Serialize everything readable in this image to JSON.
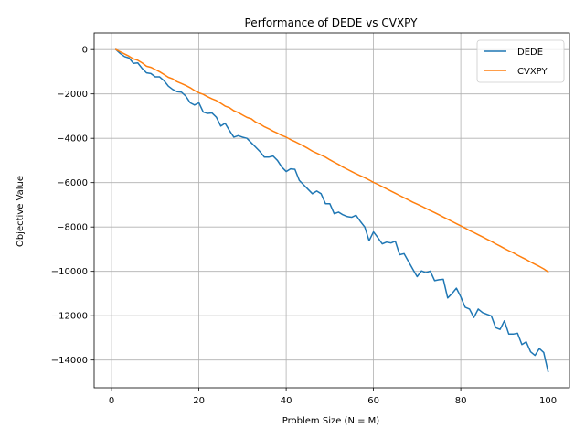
{
  "chart_data": {
    "type": "line",
    "title": "Performance of DEDE vs CVXPY",
    "xlabel": "Problem Size (N = M)",
    "ylabel": "Objective Value",
    "xlim": [
      -4,
      104.9
    ],
    "ylim": [
      -15250,
      750
    ],
    "xticks": [
      0,
      20,
      40,
      60,
      80,
      100
    ],
    "yticks": [
      0,
      -2000,
      -4000,
      -6000,
      -8000,
      -10000,
      -12000,
      -14000
    ],
    "xtick_labels": [
      "0",
      "20",
      "40",
      "60",
      "80",
      "100"
    ],
    "ytick_labels": [
      "0",
      "−2000",
      "−4000",
      "−6000",
      "−8000",
      "−10000",
      "−12000",
      "−14000"
    ],
    "grid": true,
    "legend_position": "top-right",
    "x": [
      1,
      2,
      3,
      4,
      5,
      6,
      7,
      8,
      9,
      10,
      11,
      12,
      13,
      14,
      15,
      16,
      17,
      18,
      19,
      20,
      21,
      22,
      23,
      24,
      25,
      26,
      27,
      28,
      29,
      30,
      31,
      32,
      33,
      34,
      35,
      36,
      37,
      38,
      39,
      40,
      41,
      42,
      43,
      44,
      45,
      46,
      47,
      48,
      49,
      50,
      51,
      52,
      53,
      54,
      55,
      56,
      57,
      58,
      59,
      60,
      61,
      62,
      63,
      64,
      65,
      66,
      67,
      68,
      69,
      70,
      71,
      72,
      73,
      74,
      75,
      76,
      77,
      78,
      79,
      80,
      81,
      82,
      83,
      84,
      85,
      86,
      87,
      88,
      89,
      90,
      91,
      92,
      93,
      94,
      95,
      96,
      97,
      98,
      99,
      100
    ],
    "series": [
      {
        "name": "DEDE",
        "color": "#1f77b4",
        "values": [
          0,
          -180,
          -320,
          -380,
          -620,
          -600,
          -850,
          -1050,
          -1080,
          -1230,
          -1230,
          -1400,
          -1650,
          -1800,
          -1900,
          -1920,
          -2100,
          -2400,
          -2500,
          -2400,
          -2820,
          -2880,
          -2860,
          -3050,
          -3450,
          -3320,
          -3650,
          -3950,
          -3880,
          -3950,
          -4000,
          -4200,
          -4400,
          -4600,
          -4850,
          -4850,
          -4800,
          -5000,
          -5300,
          -5500,
          -5380,
          -5400,
          -5900,
          -6100,
          -6300,
          -6500,
          -6380,
          -6500,
          -6950,
          -6950,
          -7400,
          -7330,
          -7450,
          -7530,
          -7560,
          -7470,
          -7750,
          -8000,
          -8620,
          -8220,
          -8480,
          -8760,
          -8680,
          -8720,
          -8640,
          -9250,
          -9200,
          -9550,
          -9900,
          -10240,
          -9980,
          -10060,
          -9990,
          -10420,
          -10380,
          -10360,
          -11200,
          -11000,
          -10760,
          -11150,
          -11620,
          -11700,
          -12080,
          -11700,
          -11860,
          -11940,
          -12010,
          -12540,
          -12620,
          -12230,
          -12830,
          -12830,
          -12790,
          -13300,
          -13180,
          -13630,
          -13790,
          -13480,
          -13660,
          -14520
        ]
      },
      {
        "name": "CVXPY",
        "color": "#ff7f0e",
        "values": [
          0,
          -100,
          -200,
          -300,
          -420,
          -480,
          -600,
          -750,
          -800,
          -900,
          -1000,
          -1120,
          -1250,
          -1320,
          -1450,
          -1530,
          -1620,
          -1720,
          -1850,
          -1950,
          -2020,
          -2130,
          -2220,
          -2300,
          -2420,
          -2550,
          -2620,
          -2760,
          -2840,
          -2950,
          -3060,
          -3120,
          -3270,
          -3360,
          -3480,
          -3570,
          -3680,
          -3770,
          -3870,
          -3950,
          -4060,
          -4150,
          -4250,
          -4350,
          -4460,
          -4580,
          -4670,
          -4760,
          -4850,
          -4970,
          -5080,
          -5180,
          -5300,
          -5400,
          -5500,
          -5600,
          -5690,
          -5780,
          -5880,
          -5990,
          -6080,
          -6180,
          -6280,
          -6380,
          -6480,
          -6580,
          -6680,
          -6780,
          -6880,
          -6970,
          -7060,
          -7160,
          -7260,
          -7350,
          -7450,
          -7550,
          -7650,
          -7750,
          -7850,
          -7950,
          -8050,
          -8160,
          -8250,
          -8350,
          -8450,
          -8550,
          -8650,
          -8760,
          -8860,
          -8970,
          -9070,
          -9160,
          -9270,
          -9370,
          -9470,
          -9580,
          -9680,
          -9780,
          -9890,
          -10020
        ]
      }
    ]
  }
}
